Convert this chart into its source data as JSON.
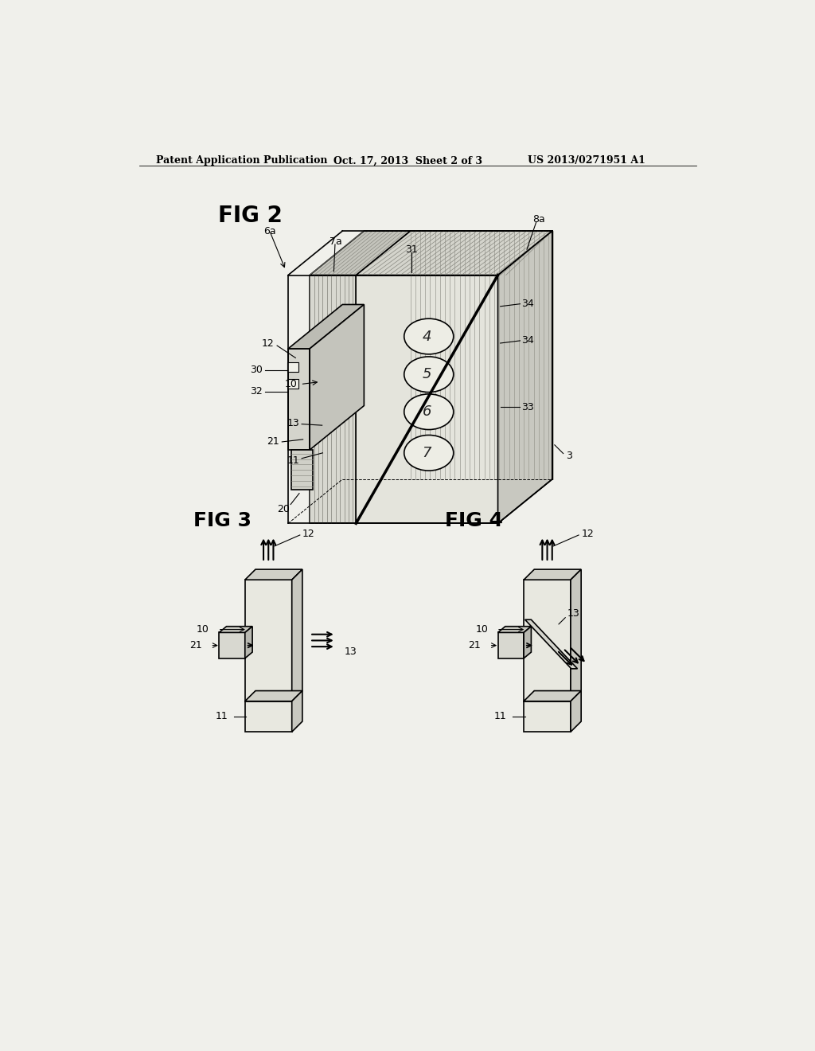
{
  "bg_color": "#f0f0eb",
  "header_text_left": "Patent Application Publication",
  "header_text_mid": "Oct. 17, 2013  Sheet 2 of 3",
  "header_text_right": "US 2013/0271951 A1",
  "fig2_label": "FIG 2",
  "fig3_label": "FIG 3",
  "fig4_label": "FIG 4",
  "line_color": "#000000",
  "fill_light": "#e8e8e0",
  "fill_mid": "#d0d0c8",
  "fill_dark": "#b8b8b0"
}
